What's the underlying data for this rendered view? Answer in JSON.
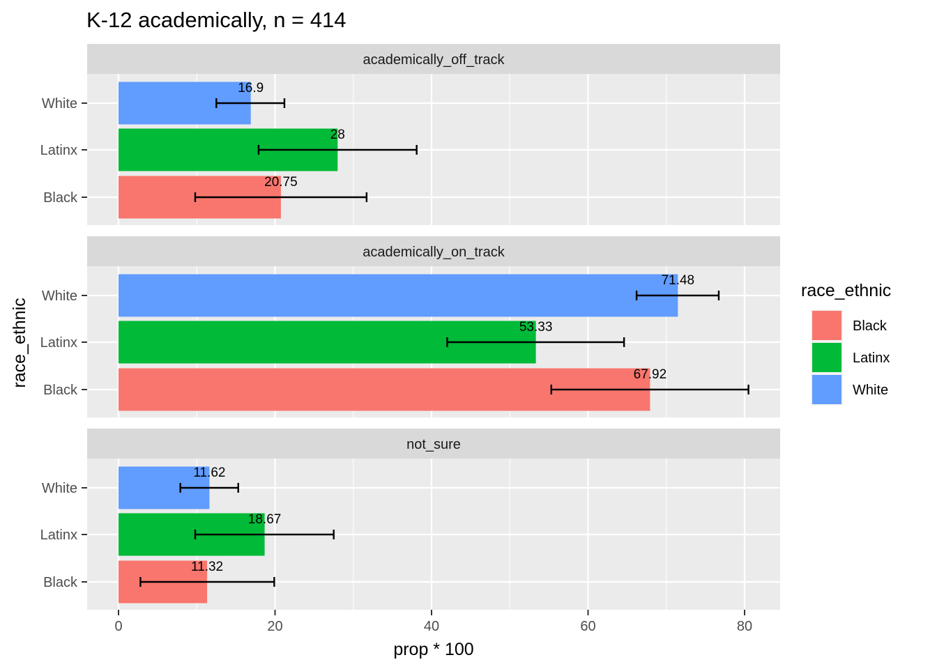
{
  "chart_data": {
    "type": "bar",
    "orientation": "horizontal",
    "title": "K-12 academically, n = 414",
    "xlabel": "prop * 100",
    "ylabel": "race_ethnic",
    "xlim": [
      -2,
      84.2
    ],
    "x_ticks": [
      0,
      20,
      40,
      60,
      80
    ],
    "x_tick_labels": [
      "0",
      "20",
      "40",
      "60",
      "80"
    ],
    "categories": [
      "White",
      "Latinx",
      "Black"
    ],
    "colors": {
      "Black": "#F8766D",
      "Latinx": "#00BA38",
      "White": "#619CFF"
    },
    "legend": {
      "title": "race_ethnic",
      "position": "right",
      "entries": [
        "Black",
        "Latinx",
        "White"
      ]
    },
    "grid": true,
    "facets": [
      {
        "label": "academically_off_track",
        "bars": [
          {
            "category": "White",
            "value": 16.9,
            "label": "16.9",
            "err_low": 12.5,
            "err_high": 21.2
          },
          {
            "category": "Latinx",
            "value": 28.0,
            "label": "28",
            "err_low": 17.9,
            "err_high": 38.1
          },
          {
            "category": "Black",
            "value": 20.75,
            "label": "20.75",
            "err_low": 9.8,
            "err_high": 31.7
          }
        ]
      },
      {
        "label": "academically_on_track",
        "bars": [
          {
            "category": "White",
            "value": 71.48,
            "label": "71.48",
            "err_low": 66.2,
            "err_high": 76.7
          },
          {
            "category": "Latinx",
            "value": 53.33,
            "label": "53.33",
            "err_low": 42.0,
            "err_high": 64.6
          },
          {
            "category": "Black",
            "value": 67.92,
            "label": "67.92",
            "err_low": 55.3,
            "err_high": 80.5
          }
        ]
      },
      {
        "label": "not_sure",
        "bars": [
          {
            "category": "White",
            "value": 11.62,
            "label": "11.62",
            "err_low": 7.9,
            "err_high": 15.3
          },
          {
            "category": "Latinx",
            "value": 18.67,
            "label": "18.67",
            "err_low": 9.8,
            "err_high": 27.5
          },
          {
            "category": "Black",
            "value": 11.32,
            "label": "11.32",
            "err_low": 2.8,
            "err_high": 19.9
          }
        ]
      }
    ]
  }
}
